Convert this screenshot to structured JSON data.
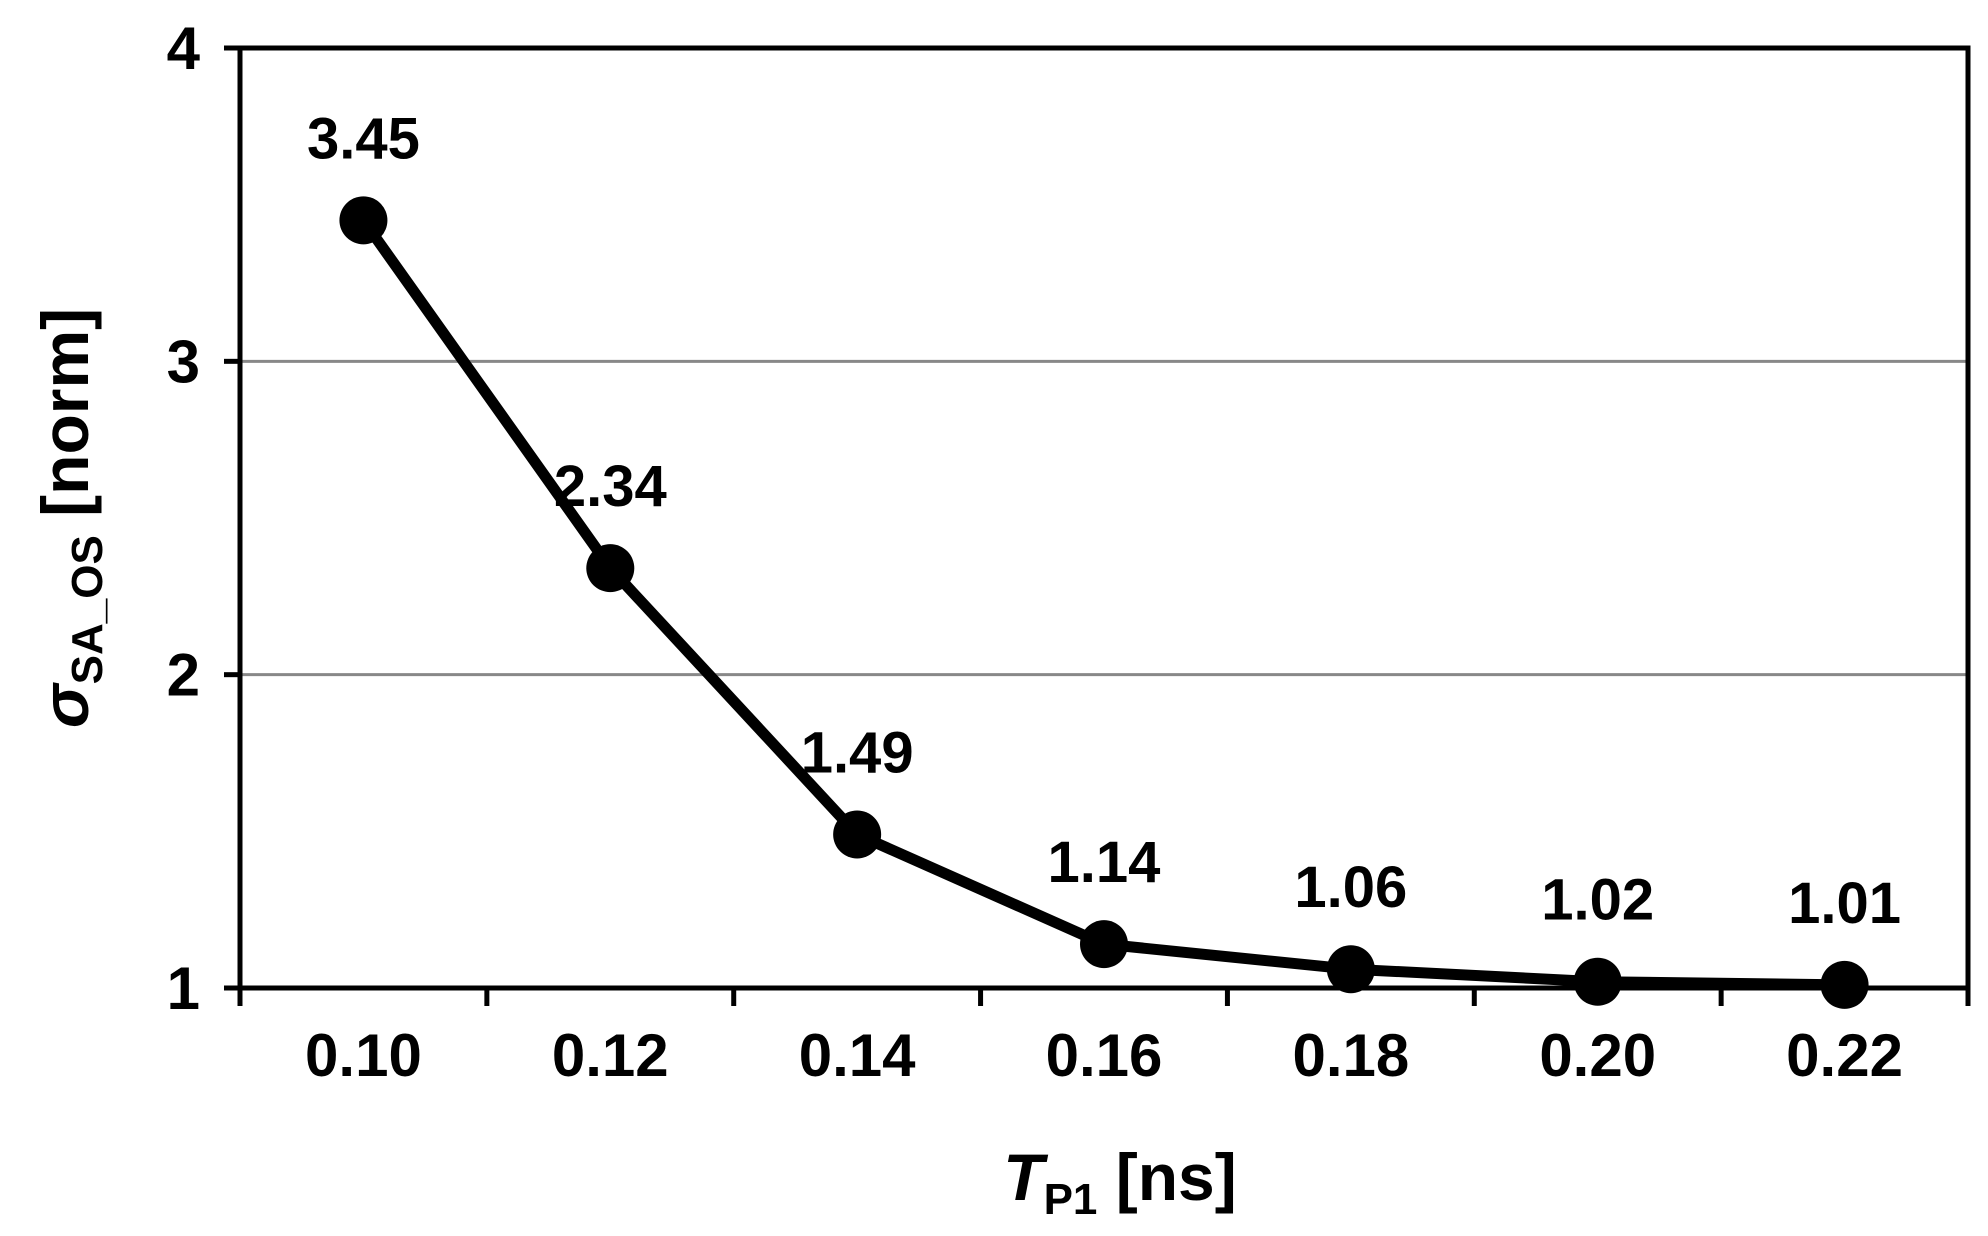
{
  "chart_data": {
    "type": "line",
    "x": [
      0.1,
      0.12,
      0.14,
      0.16,
      0.18,
      0.2,
      0.22
    ],
    "series": [
      {
        "values": [
          3.45,
          2.34,
          1.49,
          1.14,
          1.06,
          1.02,
          1.01
        ]
      }
    ],
    "data_labels": [
      "3.45",
      "2.34",
      "1.49",
      "1.14",
      "1.06",
      "1.02",
      "1.01"
    ],
    "x_tick_labels": [
      "0.10",
      "0.12",
      "0.14",
      "0.16",
      "0.18",
      "0.20",
      "0.22"
    ],
    "y_ticks": [
      1,
      2,
      3,
      4
    ],
    "y_tick_labels": [
      "1",
      "2",
      "3",
      "4"
    ],
    "ylim": [
      1,
      4
    ],
    "xlim": [
      0.09,
      0.23
    ],
    "xlabel": {
      "main": "T",
      "sub": "P1",
      "unit": " [ns]"
    },
    "ylabel": {
      "main": "σ",
      "sub": "SA_OS",
      "unit": " [norm]"
    },
    "grid": "horizontal",
    "colors": {
      "line": "#000000",
      "grid": "#888888",
      "axis": "#000000"
    }
  }
}
